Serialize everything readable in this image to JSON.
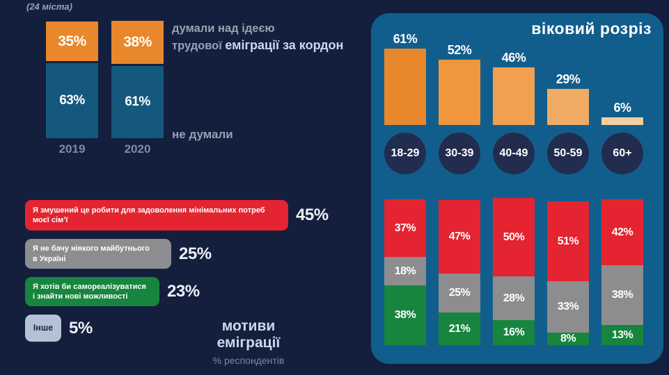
{
  "header": {
    "note": "(24 міста)"
  },
  "left_chart": {
    "annotation_line1": "думали над ідеєю",
    "annotation_line2_regular": "трудової",
    "annotation_line2_bold": "еміграції за кордон",
    "label_not_thought": "не думали"
  },
  "motives": {
    "title": "мотиви еміграції",
    "subtitle": "% респондентів"
  },
  "age_panel": {
    "title": "віковий розріз"
  },
  "colors": {
    "background": "#131f3d",
    "panel": "#115e8d",
    "orange": "#e8872b",
    "blue": "#15587e",
    "red": "#e42430",
    "gray": "#8d8d8f",
    "green": "#17853e",
    "circle": "#222c4f",
    "other_chip": "#b5c1d6"
  },
  "chart_data": [
    {
      "id": "thought_by_year",
      "type": "bar",
      "subtype": "stacked",
      "note": "(24 міста)",
      "categories": [
        "2019",
        "2020"
      ],
      "series": [
        {
          "name": "думали над ідеєю трудової еміграції за кордон",
          "color": "#e8872b",
          "values": [
            35,
            38
          ]
        },
        {
          "name": "не думали",
          "color": "#15587e",
          "values": [
            63,
            61
          ]
        }
      ],
      "unit": "%"
    },
    {
      "id": "emigration_motives",
      "type": "bar",
      "orientation": "horizontal",
      "title": "мотиви еміграції",
      "subtitle": "% респондентів",
      "categories": [
        "Я змушений це робити для задоволення мінімальних потреб\nмоєї сім’ї",
        "Я не бачу ніякого майбутнього\nв Україні",
        "Я хотів би самореалізуватися\nі знайти нові можливості",
        "Інше"
      ],
      "values": [
        45,
        25,
        23,
        5
      ],
      "colors": [
        "#e42430",
        "#8d8d8f",
        "#17853e",
        "#b5c1d6"
      ],
      "unit": "%"
    },
    {
      "id": "thought_by_age",
      "type": "bar",
      "title": "віковий розріз",
      "categories": [
        "18-29",
        "30-39",
        "40-49",
        "50-59",
        "60+"
      ],
      "values": [
        61,
        52,
        46,
        29,
        6
      ],
      "bar_colors": [
        "#e8872b",
        "#f0963f",
        "#f1a050",
        "#efab64",
        "#f3cf9f"
      ],
      "unit": "%"
    },
    {
      "id": "motives_by_age",
      "type": "bar",
      "subtype": "stacked",
      "categories": [
        "18-29",
        "30-39",
        "40-49",
        "50-59",
        "60+"
      ],
      "series": [
        {
          "name": "Я змушений це робити для задоволення мінімальних потреб моєї сім’ї",
          "color": "#e42430",
          "values": [
            37,
            47,
            50,
            51,
            42
          ]
        },
        {
          "name": "Я не бачу ніякого майбутнього в Україні",
          "color": "#8d8d8f",
          "values": [
            18,
            25,
            28,
            33,
            38
          ]
        },
        {
          "name": "Я хотів би самореалізуватися і знайти нові можливості",
          "color": "#17853e",
          "values": [
            38,
            21,
            16,
            8,
            13
          ]
        }
      ],
      "unit": "%"
    }
  ]
}
